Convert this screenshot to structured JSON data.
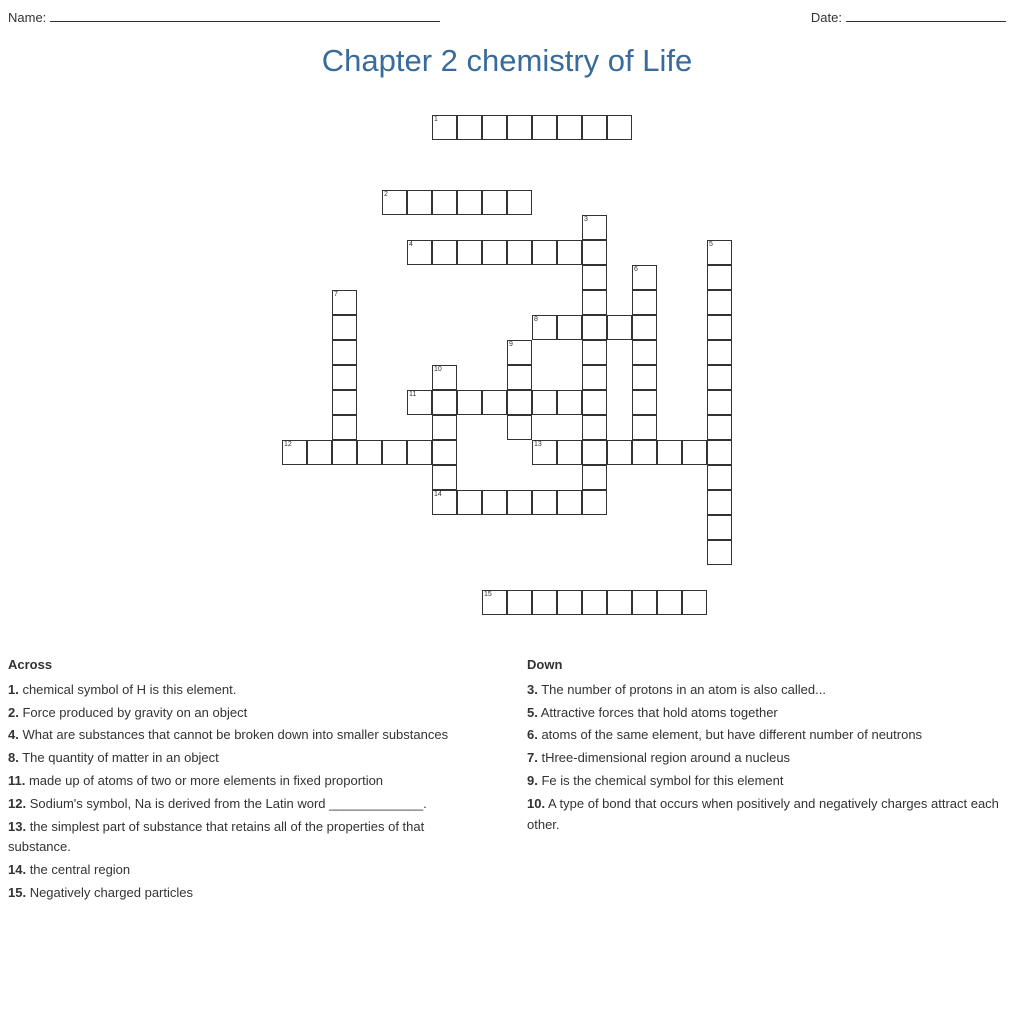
{
  "header": {
    "name_label": "Name:",
    "date_label": "Date:"
  },
  "title": "Chapter 2 chemistry of Life",
  "grid": {
    "cell_size": 25,
    "cols": 24,
    "rows": 20,
    "words": [
      {
        "num": 1,
        "row": 0,
        "col": 8,
        "len": 8,
        "dir": "across"
      },
      {
        "num": 2,
        "row": 3,
        "col": 6,
        "len": 6,
        "dir": "across"
      },
      {
        "num": 4,
        "row": 5,
        "col": 7,
        "len": 8,
        "dir": "across"
      },
      {
        "num": 8,
        "row": 8,
        "col": 12,
        "len": 4,
        "dir": "across"
      },
      {
        "num": 11,
        "row": 11,
        "col": 7,
        "len": 8,
        "dir": "across"
      },
      {
        "num": 12,
        "row": 13,
        "col": 2,
        "len": 7,
        "dir": "across"
      },
      {
        "num": 13,
        "row": 13,
        "col": 12,
        "len": 8,
        "dir": "across"
      },
      {
        "num": 14,
        "row": 15,
        "col": 8,
        "len": 7,
        "dir": "across"
      },
      {
        "num": 15,
        "row": 19,
        "col": 10,
        "len": 9,
        "dir": "across"
      },
      {
        "num": 3,
        "row": 4,
        "col": 14,
        "len": 12,
        "dir": "down"
      },
      {
        "num": 5,
        "row": 5,
        "col": 19,
        "len": 13,
        "dir": "down"
      },
      {
        "num": 6,
        "row": 6,
        "col": 16,
        "len": 8,
        "dir": "down"
      },
      {
        "num": 7,
        "row": 7,
        "col": 4,
        "len": 7,
        "dir": "down"
      },
      {
        "num": 9,
        "row": 9,
        "col": 11,
        "len": 4,
        "dir": "down"
      },
      {
        "num": 10,
        "row": 10,
        "col": 8,
        "len": 5,
        "dir": "down"
      }
    ]
  },
  "clues": {
    "across_label": "Across",
    "down_label": "Down",
    "across": [
      {
        "n": "1.",
        "text": " chemical symbol of H is this element."
      },
      {
        "n": "2.",
        "text": " Force produced by gravity on an object"
      },
      {
        "n": "4.",
        "text": " What are substances that cannot be broken down into smaller substances"
      },
      {
        "n": "8.",
        "text": " The quantity of matter in an object"
      },
      {
        "n": "11.",
        "text": " made up of atoms of two or more elements in fixed proportion"
      },
      {
        "n": "12.",
        "text": " Sodium's symbol, Na is derived from the Latin word _____________."
      },
      {
        "n": "13.",
        "text": " the simplest part of substance that retains all of the properties of that substance."
      },
      {
        "n": "14.",
        "text": " the central region"
      },
      {
        "n": "15.",
        "text": " Negatively charged particles"
      }
    ],
    "down": [
      {
        "n": "3.",
        "text": " The number of protons in an atom is also called..."
      },
      {
        "n": "5.",
        "text": " Attractive forces that hold atoms together"
      },
      {
        "n": "6.",
        "text": " atoms of the same element, but have different number of neutrons"
      },
      {
        "n": "7.",
        "text": " tHree-dimensional region around a nucleus"
      },
      {
        "n": "9.",
        "text": " Fe is the chemical symbol for this element"
      },
      {
        "n": "10.",
        "text": " A type of bond that occurs when positively and negatively charges attract each other."
      }
    ]
  }
}
